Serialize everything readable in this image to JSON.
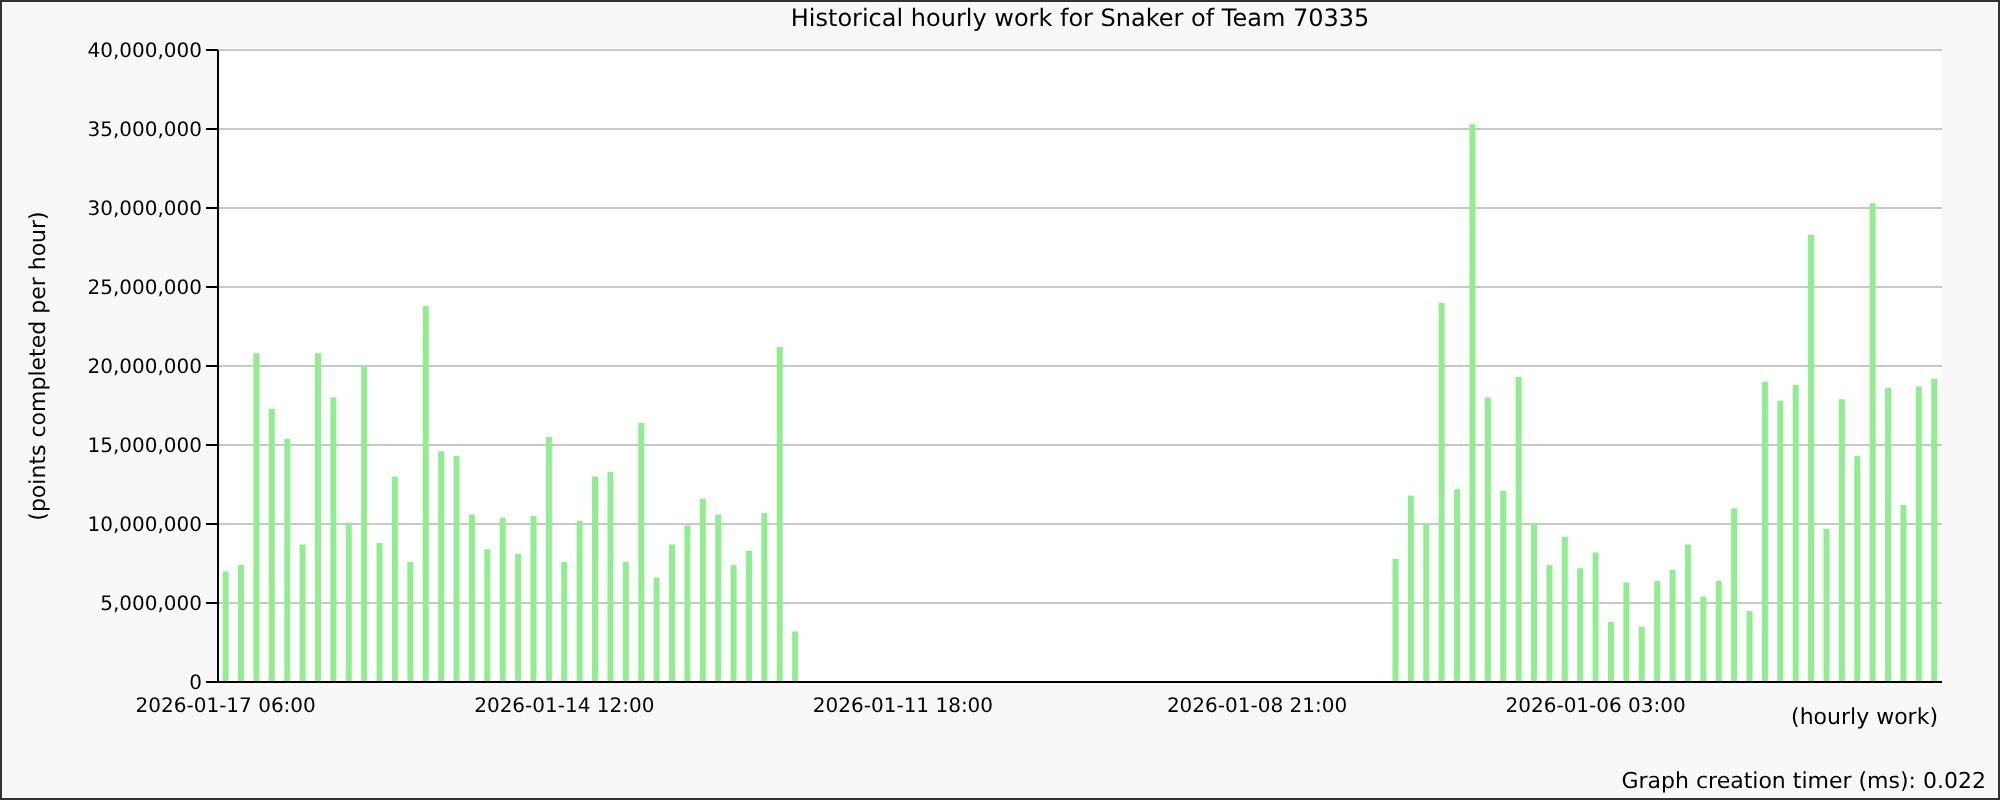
{
  "chart_data": {
    "type": "bar",
    "title": "Historical hourly work for Snaker of Team 70335",
    "xlabel": "(hourly work)",
    "ylabel": "(points completed per hour)",
    "annotations": [
      "Graph creation timer (ms): 0.022"
    ],
    "categories": [
      "2026-01-17 06:00",
      null,
      null,
      null,
      null,
      null,
      null,
      null,
      null,
      null,
      null,
      null,
      null,
      null,
      null,
      null,
      null,
      null,
      null,
      null,
      null,
      null,
      "2026-01-14 12:00",
      null,
      null,
      null,
      null,
      null,
      null,
      null,
      null,
      null,
      null,
      null,
      null,
      null,
      null,
      null,
      null,
      null,
      null,
      null,
      null,
      null,
      "2026-01-11 18:00",
      null,
      null,
      null,
      null,
      null,
      null,
      null,
      null,
      null,
      null,
      null,
      null,
      null,
      null,
      null,
      null,
      null,
      null,
      null,
      null,
      null,
      null,
      "2026-01-08 21:00",
      null,
      null,
      null,
      null,
      null,
      null,
      null,
      null,
      null,
      null,
      null,
      null,
      null,
      null,
      null,
      null,
      null,
      null,
      null,
      null,
      null,
      "2026-01-06 03:00",
      null,
      null,
      null,
      null,
      null,
      null,
      null,
      null,
      null,
      null,
      null,
      null,
      null,
      null,
      null,
      null,
      null,
      null,
      null,
      null,
      null,
      null
    ],
    "values": [
      7000000,
      7400000,
      20800000,
      17300000,
      15400000,
      8700000,
      20800000,
      18000000,
      10100000,
      20000000,
      8800000,
      13000000,
      7600000,
      23800000,
      14600000,
      14300000,
      10600000,
      8400000,
      10400000,
      8100000,
      10500000,
      15500000,
      7600000,
      10200000,
      13000000,
      13300000,
      7600000,
      16400000,
      6600000,
      8700000,
      9900000,
      11600000,
      10600000,
      7400000,
      8300000,
      10700000,
      21200000,
      3200000,
      null,
      null,
      null,
      null,
      null,
      null,
      null,
      null,
      null,
      null,
      null,
      null,
      null,
      null,
      null,
      null,
      null,
      null,
      null,
      null,
      null,
      null,
      null,
      null,
      null,
      null,
      null,
      null,
      null,
      null,
      null,
      null,
      null,
      null,
      null,
      null,
      null,
      null,
      7800000,
      11800000,
      10000000,
      24000000,
      12200000,
      35300000,
      18000000,
      12100000,
      19300000,
      10000000,
      7400000,
      9200000,
      7200000,
      8200000,
      3800000,
      6300000,
      3500000,
      6400000,
      7100000,
      8700000,
      5400000,
      6400000,
      11000000,
      4500000,
      19000000,
      17800000,
      18800000,
      28300000,
      9700000,
      17900000,
      14300000,
      30300000,
      18600000,
      11200000,
      18700000,
      19200000
    ],
    "color": "#90ee90",
    "ylim": [
      0,
      40000000
    ],
    "yticks": [
      0,
      {
        "value": 5000000,
        "label": "5,000,000"
      },
      {
        "value": 10000000,
        "label": "10,000,000"
      },
      {
        "value": 15000000,
        "label": "15,000,000"
      },
      {
        "value": 20000000,
        "label": "20,000,000"
      },
      {
        "value": 25000000,
        "label": "25,000,000"
      },
      {
        "value": 30000000,
        "label": "30,000,000"
      },
      {
        "value": 35000000,
        "label": "35,000,000"
      },
      {
        "value": 40000000,
        "label": "40,000,000"
      }
    ],
    "grid": "y"
  }
}
